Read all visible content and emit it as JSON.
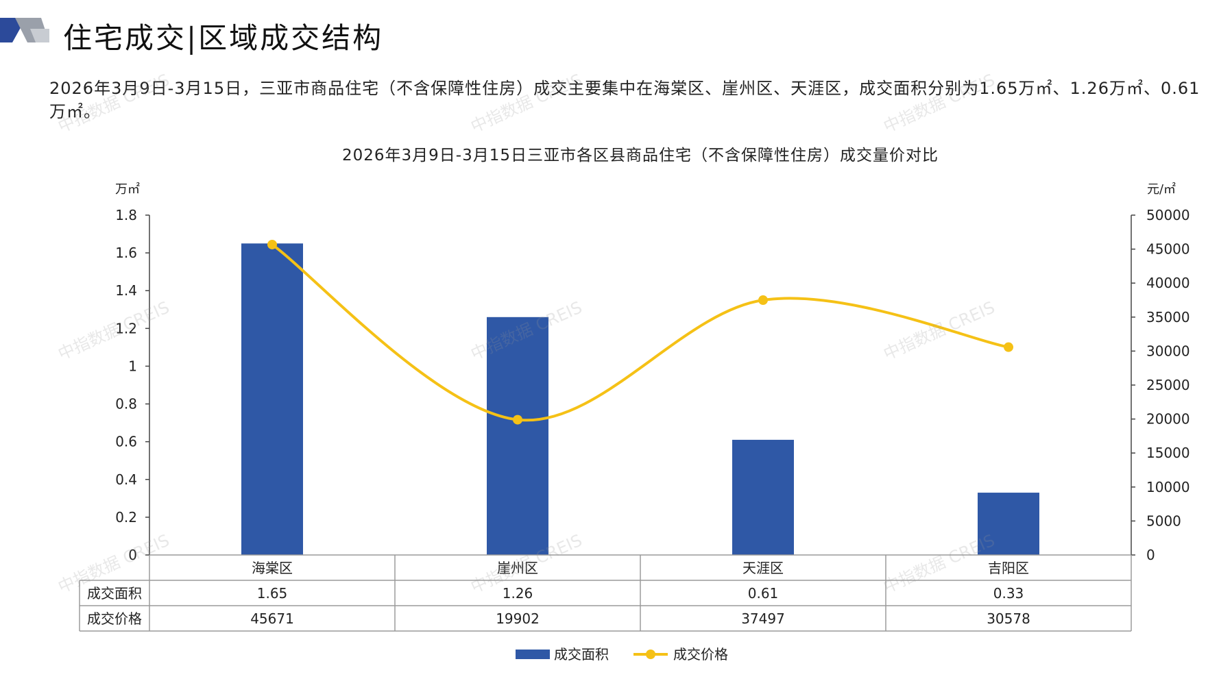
{
  "header": {
    "title": "住宅成交|区域成交结构"
  },
  "intro_text": "2026年3月9日-3月15日，三亚市商品住宅（不含保障性住房）成交主要集中在海棠区、崖州区、天涯区，成交面积分别为1.65万㎡、1.26万㎡、0.61万㎡。",
  "watermark_text": "中指数据 CREIS",
  "colors": {
    "bar": "#2f58a6",
    "line": "#f5c116",
    "axis": "#444444",
    "grid": "#9a9a9a",
    "logo_dark": "#2c4a9a",
    "logo_light": "#9aa0aa"
  },
  "chart_data": {
    "type": "bar",
    "title": "2026年3月9日-3月15日三亚市各区县商品住宅（不含保障性住房）成交量价对比",
    "categories": [
      "海棠区",
      "崖州区",
      "天涯区",
      "吉阳区"
    ],
    "series": [
      {
        "name": "成交面积",
        "type": "bar",
        "axis": "left",
        "values": [
          1.65,
          1.26,
          0.61,
          0.33
        ],
        "labels": [
          "1.65",
          "1.26",
          "0.61",
          "0.33"
        ]
      },
      {
        "name": "成交价格",
        "type": "line",
        "axis": "right",
        "smooth": true,
        "values": [
          45671,
          19902,
          37497,
          30578
        ],
        "labels": [
          "45671",
          "19902",
          "37497",
          "30578"
        ]
      }
    ],
    "y_left": {
      "unit": "万㎡",
      "ylim": [
        0,
        1.8
      ],
      "ticks": [
        "1.8",
        "1.6",
        "1.4",
        "1.2",
        "1",
        "0.8",
        "0.6",
        "0.4",
        "0.2",
        "0"
      ]
    },
    "y_right": {
      "unit": "元/㎡",
      "ylim": [
        0,
        50000
      ],
      "ticks": [
        "50000",
        "45000",
        "40000",
        "35000",
        "30000",
        "25000",
        "20000",
        "15000",
        "10000",
        "5000",
        "0"
      ]
    },
    "data_table": {
      "row_labels": [
        "成交面积",
        "成交价格"
      ]
    },
    "legend": {
      "position": "bottom"
    },
    "grid": false
  }
}
